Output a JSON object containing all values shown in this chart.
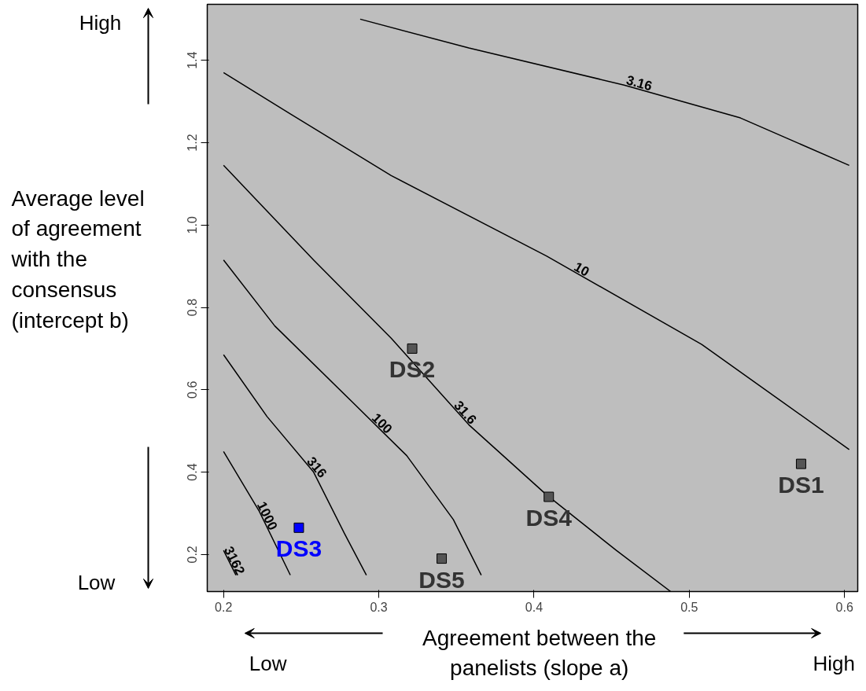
{
  "chart_data": {
    "type": "line",
    "xlabel": "Agreement between the panelists (slope a)",
    "ylabel": "Average level of agreement with the consensus (intercept b)",
    "xlim": [
      0.1895,
      0.6085
    ],
    "ylim": [
      0.11,
      1.536
    ],
    "xticks": [
      0.2,
      0.3,
      0.4,
      0.5,
      0.6
    ],
    "yticks": [
      0.2,
      0.4,
      0.6,
      0.8,
      {
        "value": 1.0,
        "label": "1.0"
      },
      1.2,
      1.4
    ],
    "grid": false,
    "line_style": "solid",
    "series": [
      {
        "name": "3.16",
        "color": "#000000",
        "x": [
          0.288,
          0.358,
          0.458,
          0.533,
          0.603
        ],
        "values": [
          1.5,
          1.43,
          1.34,
          1.26,
          1.145
        ]
      },
      {
        "name": "10",
        "color": "#000000",
        "x": [
          0.2,
          0.243,
          0.308,
          0.408,
          0.508,
          0.603
        ],
        "values": [
          1.37,
          1.27,
          1.12,
          0.925,
          0.71,
          0.455
        ]
      },
      {
        "name": "31.6",
        "color": "#000000",
        "x": [
          0.2,
          0.258,
          0.308,
          0.358,
          0.408,
          0.453,
          0.488
        ],
        "values": [
          1.145,
          0.915,
          0.725,
          0.515,
          0.345,
          0.21,
          0.11
        ]
      },
      {
        "name": "100",
        "color": "#000000",
        "x": [
          0.2,
          0.233,
          0.283,
          0.318,
          0.348,
          0.366
        ],
        "values": [
          0.915,
          0.755,
          0.57,
          0.44,
          0.285,
          0.15
        ]
      },
      {
        "name": "316",
        "color": "#000000",
        "x": [
          0.2,
          0.228,
          0.258,
          0.278,
          0.292
        ],
        "values": [
          0.685,
          0.535,
          0.4,
          0.25,
          0.15
        ]
      },
      {
        "name": "1000",
        "color": "#000000",
        "x": [
          0.2,
          0.223,
          0.243
        ],
        "values": [
          0.45,
          0.305,
          0.15
        ]
      },
      {
        "name": "3162",
        "color": "#000000",
        "x": [
          0.2,
          0.208
        ],
        "values": [
          0.21,
          0.15
        ]
      },
      {
        "name": "DS1",
        "type": "scatter",
        "marker": "square",
        "color": "#555555",
        "x": [
          0.572
        ],
        "values": [
          0.42
        ]
      },
      {
        "name": "DS2",
        "type": "scatter",
        "marker": "square",
        "color": "#555555",
        "x": [
          0.3215
        ],
        "values": [
          0.7
        ]
      },
      {
        "name": "DS3",
        "type": "scatter",
        "marker": "square",
        "color": "#0000ff",
        "x": [
          0.2485
        ],
        "values": [
          0.265
        ]
      },
      {
        "name": "DS4",
        "type": "scatter",
        "marker": "square",
        "color": "#555555",
        "x": [
          0.4095
        ],
        "values": [
          0.34
        ]
      },
      {
        "name": "DS5",
        "type": "scatter",
        "marker": "square",
        "color": "#555555",
        "x": [
          0.3405
        ],
        "values": [
          0.19
        ]
      }
    ],
    "annotations": [
      "High",
      "Low",
      "Low",
      "High"
    ]
  }
}
